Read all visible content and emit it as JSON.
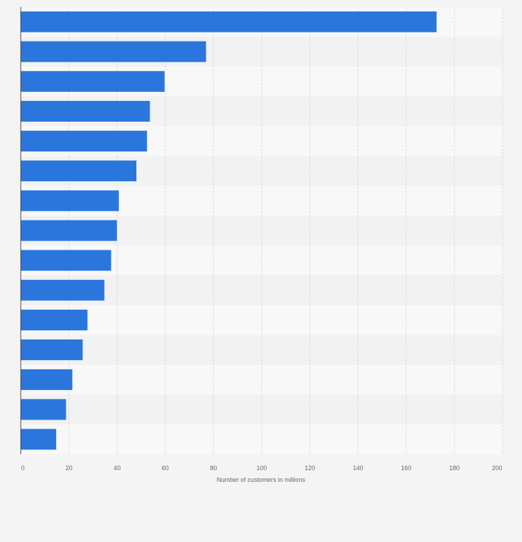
{
  "chart_data": {
    "type": "bar",
    "orientation": "horizontal",
    "title": "",
    "xlabel": "Number of customers in millions",
    "ylabel": "",
    "xlim": [
      0,
      200
    ],
    "x_ticks": [
      0,
      20,
      40,
      60,
      80,
      100,
      120,
      140,
      160,
      180,
      200
    ],
    "categories": [
      "",
      "",
      "",
      "",
      "",
      "",
      "",
      "",
      "",
      "",
      "",
      "",
      "",
      "",
      ""
    ],
    "values": [
      172.6,
      76.9,
      59.7,
      53.6,
      52.4,
      48.0,
      40.7,
      39.9,
      37.5,
      34.7,
      27.7,
      25.7,
      21.4,
      18.8,
      14.7
    ],
    "grid": true,
    "legend": "none"
  },
  "colors": {
    "bar": "#2a76dd",
    "band_light": "#f8f8f8",
    "band_dark": "#f2f2f2",
    "grid": "#d9d9d9",
    "axis": "#444444",
    "background": "#f4f4f4"
  }
}
